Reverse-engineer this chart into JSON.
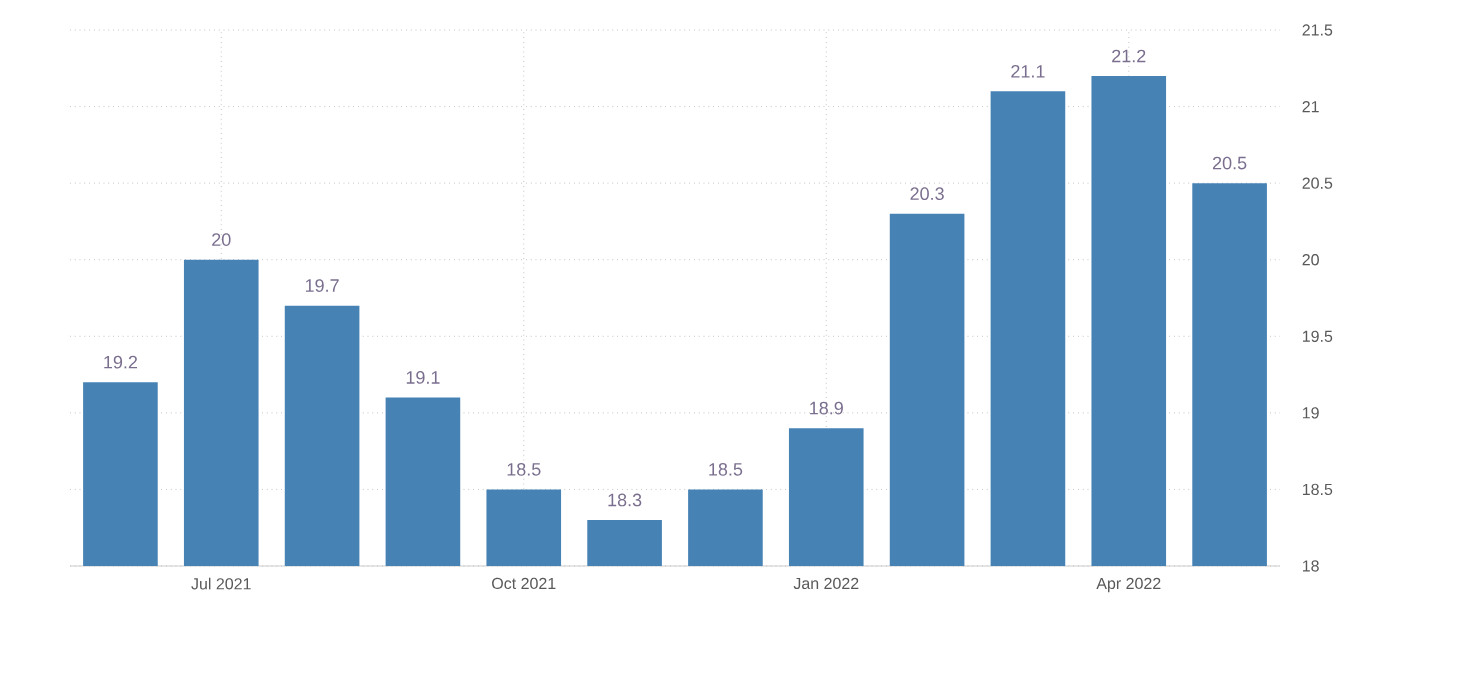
{
  "chart_data": {
    "type": "bar",
    "categories": [
      null,
      "Jul 2021",
      null,
      null,
      "Oct 2021",
      null,
      null,
      "Jan 2022",
      null,
      null,
      "Apr 2022",
      null
    ],
    "values": [
      19.2,
      20,
      19.7,
      19.1,
      18.5,
      18.3,
      18.5,
      18.9,
      20.3,
      21.1,
      21.2,
      20.5
    ],
    "color": "#4682b4",
    "ylim": [
      18,
      21.5
    ],
    "yticks": [
      18,
      18.5,
      19,
      19.5,
      20,
      20.5,
      21,
      21.5
    ],
    "grid": true,
    "data_labels": true
  }
}
